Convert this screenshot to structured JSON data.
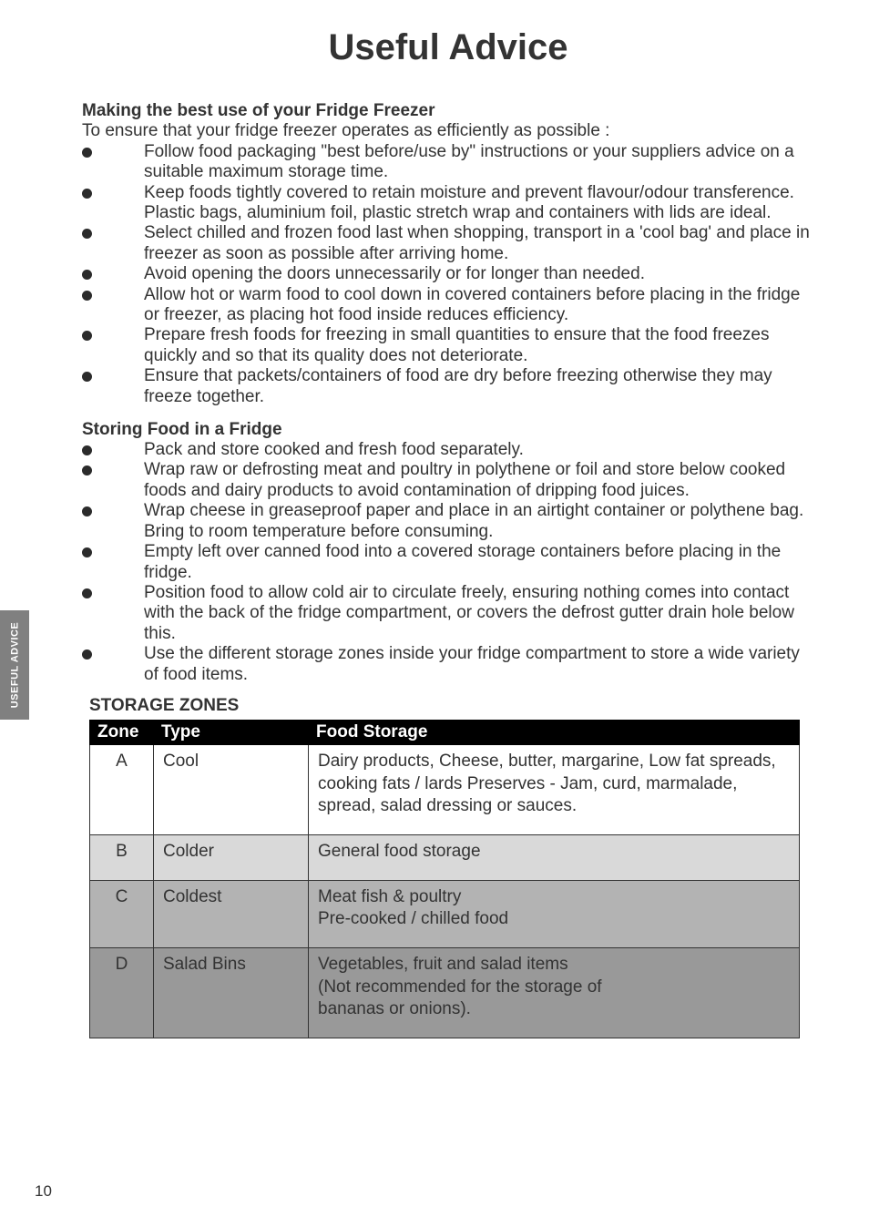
{
  "sideTab": "USEFUL  ADVICE",
  "title": "Useful Advice",
  "section1": {
    "heading": "Making the best use of your Fridge Freezer",
    "intro": "To ensure that your fridge freezer operates as efficiently as possible :",
    "bullets": [
      "Follow food packaging \"best before/use by\" instructions or your suppliers advice on a suitable maximum storage time.",
      "Keep foods tightly covered to retain moisture and prevent flavour/odour transference.  Plastic bags, aluminium foil, plastic stretch wrap and containers with lids are ideal.",
      "Select chilled and frozen food last when shopping, transport in a 'cool bag' and place in freezer as soon as possible after arriving home.",
      "Avoid opening the doors unnecessarily or for longer than needed.",
      "Allow hot or warm food to cool down in covered containers before placing in the fridge or freezer, as placing hot food inside reduces efficiency.",
      "Prepare fresh foods for freezing in small quantities to ensure that the food freezes quickly and so that its quality does not deteriorate.",
      "Ensure that packets/containers of food are dry before freezing otherwise they may freeze together."
    ]
  },
  "section2": {
    "heading": "Storing Food in a Fridge",
    "bullets": [
      {
        "text": "Pack and store cooked and fresh food separately."
      },
      {
        "text": "Wrap raw or defrosting meat and poultry in polythene or foil and store below cooked foods and dairy products to avoid contamination of dripping food juices."
      },
      {
        "text": "Wrap cheese in greaseproof paper and place in an airtight container or polythene bag.",
        "sub": "Bring to room temperature before consuming."
      },
      {
        "text": "Empty left over canned food into a covered storage containers before placing in the fridge."
      },
      {
        "text": "Position food to allow cold air to circulate freely, ensuring nothing comes into contact with the back of the fridge compartment, or covers the defrost gutter drain hole below this."
      },
      {
        "text": "Use the different storage zones inside your fridge compartment to store a wide variety of food items."
      }
    ]
  },
  "zonesTable": {
    "heading": "STORAGE ZONES",
    "columns": [
      "Zone",
      "Type",
      "Food Storage"
    ],
    "rows": [
      {
        "cls": "ra",
        "zone": "A",
        "type": "Cool",
        "storage": "Dairy products,  Cheese, butter, margarine, Low fat spreads, cooking fats / lards Preserves - Jam, curd, marmalade, spread, salad dressing or sauces."
      },
      {
        "cls": "rb",
        "zone": "B",
        "type": "Colder",
        "storage": "General food storage"
      },
      {
        "cls": "rc",
        "zone": "C",
        "type": "Coldest",
        "storage": "Meat fish & poultry\nPre-cooked / chilled food"
      },
      {
        "cls": "rd",
        "zone": "D",
        "type": "Salad Bins",
        "storage": "Vegetables, fruit and salad items\n (Not recommended for the storage of\n bananas or onions)."
      }
    ]
  },
  "pageNumber": "10"
}
